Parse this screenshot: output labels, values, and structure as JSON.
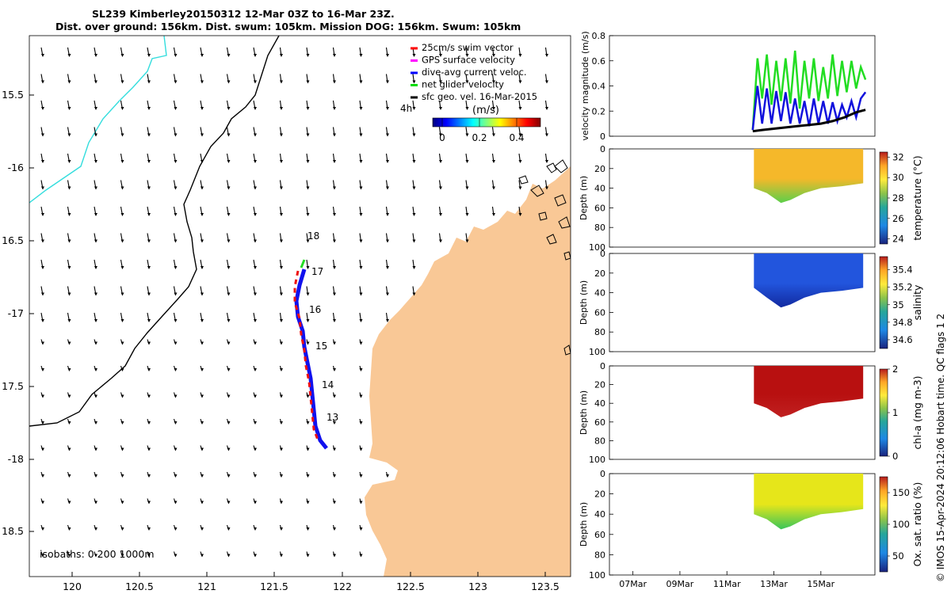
{
  "header": {
    "title_line1": "SL239 Kimberley20150312 12-Mar 03Z to 16-Mar 23Z.",
    "title_line2": "Dist. over ground: 156km. Dist. swum: 105km. Mission DOG: 156km. Swum: 105km"
  },
  "map": {
    "lon_ticks": [
      "120",
      "120.5",
      "121",
      "121.5",
      "122",
      "122.5",
      "123",
      "123.5"
    ],
    "lat_ticks": [
      "15.5",
      "-16",
      "16.5",
      "-17",
      "17.5",
      "-18",
      "18.5"
    ],
    "legend": [
      {
        "label": "25cm/s swim vector",
        "color": "#ff0000"
      },
      {
        "label": "GPS surface velocity",
        "color": "#ff00ff"
      },
      {
        "label": "dive-avg current veloc.",
        "color": "#0000ff"
      },
      {
        "label": "net glider velocity",
        "color": "#00dd00"
      },
      {
        "label": "sfc geo. vel. 16-Mar-2015",
        "color": "#000000"
      }
    ],
    "time_marker": "4h",
    "colorbar_title": "(m/s)",
    "colorbar_ticks": [
      "0",
      "0.2",
      "0.4"
    ],
    "day_labels": [
      "18",
      "17",
      "16",
      "15",
      "14",
      "13"
    ],
    "isobath_note": "isobaths: 0   200  1000m",
    "land_color": "#f9c896",
    "isobath_200_color": "#33dddd"
  },
  "panels": {
    "x_ticks": [
      "07Mar",
      "09Mar",
      "11Mar",
      "13Mar",
      "15Mar"
    ],
    "credit": "© IMOS 15-Apr-2024 20:12:06 Hobart time. QC flags 1  2",
    "depth_label": "Depth (m)"
  },
  "chart_data": [
    {
      "type": "line",
      "title": "",
      "ylabel": "velocity magnitude (m/s)",
      "ylim": [
        0,
        0.8
      ],
      "yticks": [
        "0",
        "0.2",
        "0.4",
        "0.6",
        "0.8"
      ],
      "series": [
        {
          "name": "net glider velocity",
          "color": "#22dd22",
          "x": [
            12.1,
            12.3,
            12.5,
            12.7,
            12.9,
            13.1,
            13.3,
            13.5,
            13.7,
            13.9,
            14.1,
            14.3,
            14.5,
            14.7,
            14.9,
            15.1,
            15.3,
            15.5,
            15.7,
            15.9,
            16.1,
            16.3,
            16.5,
            16.7,
            16.9
          ],
          "values": [
            0.05,
            0.62,
            0.3,
            0.65,
            0.25,
            0.6,
            0.28,
            0.62,
            0.26,
            0.68,
            0.22,
            0.6,
            0.3,
            0.62,
            0.28,
            0.55,
            0.3,
            0.65,
            0.32,
            0.6,
            0.35,
            0.6,
            0.38,
            0.55,
            0.45
          ]
        },
        {
          "name": "dive-avg current veloc.",
          "color": "#1111dd",
          "x": [
            12.1,
            12.3,
            12.5,
            12.7,
            12.9,
            13.1,
            13.3,
            13.5,
            13.7,
            13.9,
            14.1,
            14.3,
            14.5,
            14.7,
            14.9,
            15.1,
            15.3,
            15.5,
            15.7,
            15.9,
            16.1,
            16.3,
            16.5,
            16.7,
            16.9
          ],
          "values": [
            0.05,
            0.4,
            0.1,
            0.38,
            0.1,
            0.36,
            0.12,
            0.35,
            0.1,
            0.3,
            0.1,
            0.28,
            0.08,
            0.3,
            0.1,
            0.28,
            0.1,
            0.27,
            0.12,
            0.25,
            0.15,
            0.28,
            0.15,
            0.3,
            0.35
          ]
        },
        {
          "name": "sfc geo. vel.",
          "color": "#000000",
          "x": [
            12.1,
            12.5,
            13.0,
            13.5,
            14.0,
            14.5,
            15.0,
            15.5,
            16.0,
            16.5,
            16.9
          ],
          "values": [
            0.04,
            0.05,
            0.06,
            0.07,
            0.08,
            0.09,
            0.1,
            0.12,
            0.15,
            0.19,
            0.21
          ]
        }
      ]
    },
    {
      "type": "heatmap",
      "ylabel": "Depth (m)",
      "clabel": "temperature (°C)",
      "crange": [
        23.5,
        32.5
      ],
      "cticks": [
        "24",
        "26",
        "28",
        "30",
        "32"
      ],
      "yticks": [
        "0",
        "20",
        "40",
        "60",
        "80",
        "100"
      ],
      "max_depth": [
        40,
        45,
        55,
        52,
        45,
        40,
        38,
        35
      ]
    },
    {
      "type": "heatmap",
      "ylabel": "Depth (m)",
      "clabel": "salinity",
      "crange": [
        34.5,
        35.55
      ],
      "cticks": [
        "34.6",
        "34.8",
        "35",
        "35.2",
        "35.4"
      ],
      "yticks": [
        "0",
        "20",
        "40",
        "60",
        "80",
        "100"
      ],
      "max_depth": [
        35,
        45,
        55,
        52,
        45,
        40,
        38,
        35
      ]
    },
    {
      "type": "heatmap",
      "ylabel": "Depth (m)",
      "clabel": "chl-a (mg m-3)",
      "crange": [
        0,
        2
      ],
      "cticks": [
        "0",
        "1",
        "2"
      ],
      "yticks": [
        "0",
        "20",
        "40",
        "60",
        "80",
        "100"
      ],
      "max_depth": [
        40,
        45,
        55,
        52,
        45,
        40,
        38,
        35
      ]
    },
    {
      "type": "heatmap",
      "ylabel": "Depth (m)",
      "clabel": "Ox. sat. ratio (%)",
      "crange": [
        25,
        175
      ],
      "cticks": [
        "50",
        "100",
        "150"
      ],
      "yticks": [
        "0",
        "20",
        "40",
        "60",
        "80",
        "100"
      ],
      "max_depth": [
        40,
        45,
        55,
        52,
        45,
        40,
        38,
        35
      ]
    }
  ]
}
